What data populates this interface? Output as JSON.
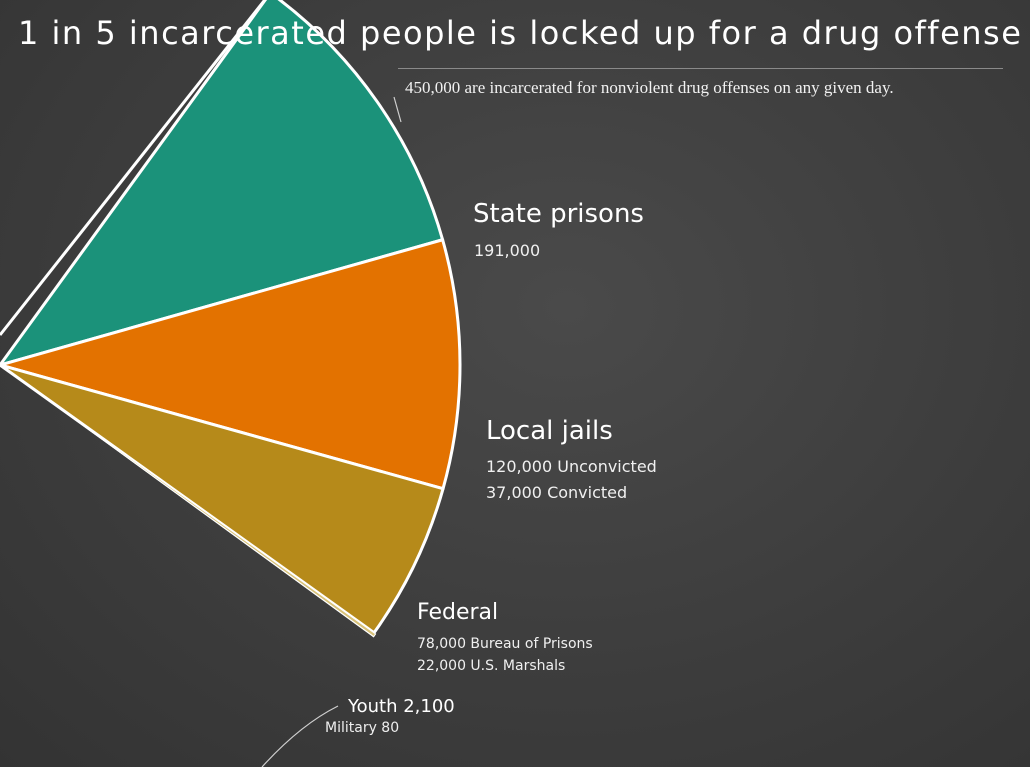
{
  "chart_data": {
    "type": "pie",
    "title": "1 in 5 incarcerated people is locked up for a drug offense",
    "subtitle": "450,000 are incarcerated for nonviolent drug offenses on any given day.",
    "slices": [
      {
        "name": "State prisons",
        "value": 191000,
        "color": "#1b927a",
        "details": [
          "191,000"
        ]
      },
      {
        "name": "Local jails",
        "value": 157000,
        "color": "#e37200",
        "details": [
          "120,000 Unconvicted",
          "37,000 Convicted"
        ]
      },
      {
        "name": "Federal",
        "value": 100000,
        "color": "#b68a1a",
        "details": [
          "78,000 Bureau of Prisons",
          "22,000 U.S. Marshals"
        ]
      },
      {
        "name": "Youth",
        "value": 2100,
        "color": "#d8c27a",
        "details": [
          "Youth 2,100"
        ]
      },
      {
        "name": "Military",
        "value": 80,
        "color": "#ffffff",
        "details": [
          "Military 80"
        ]
      }
    ]
  }
}
